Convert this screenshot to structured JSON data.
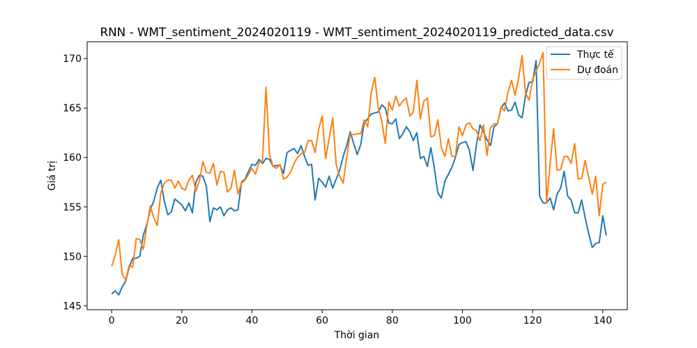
{
  "chart_data": {
    "type": "line",
    "title": "RNN - WMT_sentiment_2024020119 - WMT_sentiment_2024020119_predicted_data.csv",
    "xlabel": "Thời gian",
    "ylabel": "Giá trị",
    "xlim": [
      -7,
      147
    ],
    "ylim": [
      144.6,
      171.7
    ],
    "xticks": [
      0,
      20,
      40,
      60,
      80,
      100,
      120,
      140
    ],
    "yticks": [
      145,
      150,
      155,
      160,
      165,
      170
    ],
    "grid": false,
    "legend_position": "upper-right",
    "series": [
      {
        "name": "Thực tế",
        "color": "#1f77b4",
        "values": [
          146.2,
          146.5,
          146.1,
          146.9,
          147.5,
          148.9,
          149.8,
          149.8,
          150.0,
          152.1,
          153.2,
          154.7,
          155.6,
          156.9,
          157.7,
          155.6,
          154.2,
          154.5,
          155.8,
          155.5,
          155.2,
          154.6,
          155.4,
          154.4,
          157.5,
          158.2,
          158.1,
          157.1,
          153.5,
          154.9,
          154.7,
          155.0,
          154.1,
          154.7,
          154.9,
          154.6,
          154.7,
          157.5,
          157.8,
          158.6,
          159.3,
          159.2,
          159.8,
          159.4,
          159.9,
          159.8,
          159.1,
          159.2,
          159.2,
          158.4,
          160.5,
          160.7,
          160.9,
          160.4,
          161.2,
          160.1,
          159.2,
          159.3,
          155.7,
          157.9,
          157.5,
          157.0,
          158.1,
          156.9,
          157.8,
          158.7,
          160.1,
          161.2,
          162.6,
          161.4,
          160.3,
          161.3,
          163.5,
          163.9,
          164.4,
          164.5,
          164.6,
          165.3,
          165.0,
          163.5,
          163.4,
          163.9,
          161.9,
          162.4,
          163.1,
          162.6,
          161.7,
          162.5,
          159.9,
          160.1,
          159.1,
          161.0,
          158.9,
          156.4,
          155.9,
          157.6,
          158.3,
          159.0,
          160.0,
          161.3,
          161.5,
          161.6,
          160.7,
          158.7,
          161.3,
          163.3,
          162.6,
          161.8,
          161.2,
          163.1,
          163.4,
          165.0,
          165.5,
          164.7,
          164.8,
          165.6,
          164.3,
          164.0,
          166.3,
          167.6,
          167.6,
          169.8,
          156.1,
          155.4,
          155.4,
          155.9,
          154.7,
          156.3,
          156.9,
          158.6,
          156.1,
          155.7,
          154.4,
          154.4,
          155.7,
          153.9,
          152.3,
          150.9,
          151.3,
          151.4,
          154.1,
          152.1
        ]
      },
      {
        "name": "Dự đoán",
        "color": "#ff7f0e",
        "values": [
          149.0,
          150.1,
          151.7,
          148.2,
          147.6,
          149.1,
          148.9,
          151.8,
          151.7,
          150.7,
          153.0,
          155.1,
          153.9,
          153.1,
          156.4,
          157.4,
          157.7,
          157.7,
          156.9,
          157.6,
          156.9,
          156.7,
          157.7,
          158.2,
          156.6,
          157.6,
          159.6,
          158.5,
          158.4,
          159.4,
          157.2,
          158.6,
          158.5,
          156.5,
          156.9,
          158.7,
          156.3,
          157.4,
          157.7,
          158.3,
          158.9,
          158.3,
          159.5,
          159.7,
          167.1,
          160.3,
          159.1,
          158.9,
          159.3,
          157.8,
          158.0,
          158.5,
          159.4,
          160.0,
          160.4,
          160.5,
          161.7,
          161.7,
          160.5,
          162.8,
          164.2,
          159.9,
          161.9,
          164.0,
          159.3,
          158.1,
          157.4,
          160.0,
          162.4,
          162.3,
          162.4,
          162.4,
          163.8,
          163.1,
          166.6,
          168.1,
          165.0,
          163.7,
          161.4,
          165.6,
          164.8,
          166.2,
          165.2,
          165.7,
          166.0,
          164.2,
          164.6,
          167.8,
          163.9,
          165.7,
          166.0,
          162.1,
          162.2,
          163.8,
          161.0,
          160.1,
          161.9,
          160.1,
          160.1,
          163.1,
          162.2,
          163.3,
          163.5,
          162.9,
          162.7,
          161.7,
          163.3,
          160.2,
          163.0,
          163.4,
          163.4,
          165.1,
          164.7,
          166.6,
          167.8,
          166.3,
          168.0,
          170.3,
          166.5,
          165.8,
          167.9,
          168.7,
          169.6,
          170.6,
          155.4,
          159.4,
          162.9,
          158.7,
          158.8,
          160.1,
          160.1,
          159.4,
          161.4,
          157.8,
          157.9,
          159.7,
          158.0,
          156.3,
          158.1,
          154.1,
          157.3,
          157.5
        ]
      }
    ]
  }
}
